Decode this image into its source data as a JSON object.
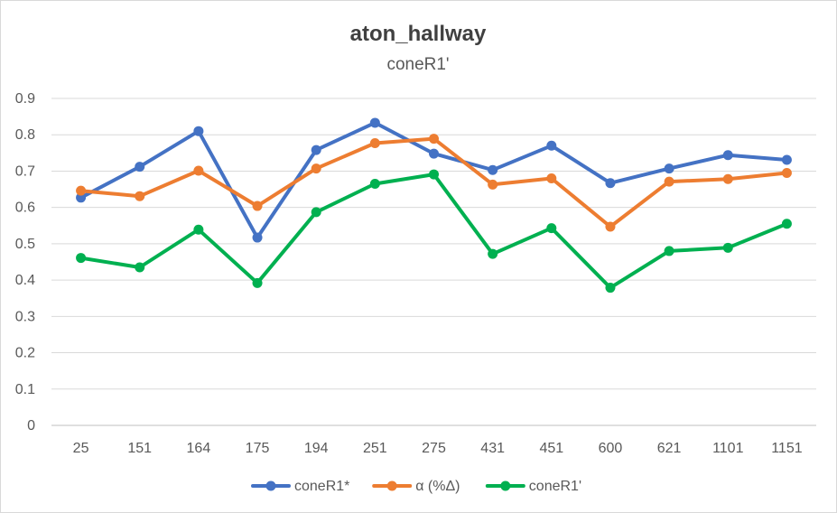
{
  "chart_data": {
    "type": "line",
    "title": "aton_hallway",
    "subtitle": "coneR1'",
    "categories": [
      "25",
      "151",
      "164",
      "175",
      "194",
      "251",
      "275",
      "431",
      "451",
      "600",
      "621",
      "1101",
      "1151"
    ],
    "ylim": [
      0,
      0.9
    ],
    "yticks": [
      "0",
      "0.1",
      "0.2",
      "0.3",
      "0.4",
      "0.5",
      "0.6",
      "0.7",
      "0.8",
      "0.9"
    ],
    "grid": true,
    "legend_position": "bottom",
    "series": [
      {
        "name": "coneR1*",
        "color": "#4472C4",
        "values": [
          0.627,
          0.712,
          0.81,
          0.517,
          0.758,
          0.833,
          0.748,
          0.703,
          0.77,
          0.667,
          0.707,
          0.744,
          0.731
        ]
      },
      {
        "name": "α (%Δ)",
        "color": "#ED7D31",
        "values": [
          0.646,
          0.631,
          0.701,
          0.604,
          0.707,
          0.777,
          0.789,
          0.663,
          0.68,
          0.547,
          0.671,
          0.678,
          0.695
        ]
      },
      {
        "name": "coneR1'",
        "color": "#00B050",
        "values": [
          0.461,
          0.435,
          0.539,
          0.392,
          0.587,
          0.665,
          0.691,
          0.472,
          0.543,
          0.379,
          0.48,
          0.489,
          0.555
        ]
      }
    ]
  }
}
